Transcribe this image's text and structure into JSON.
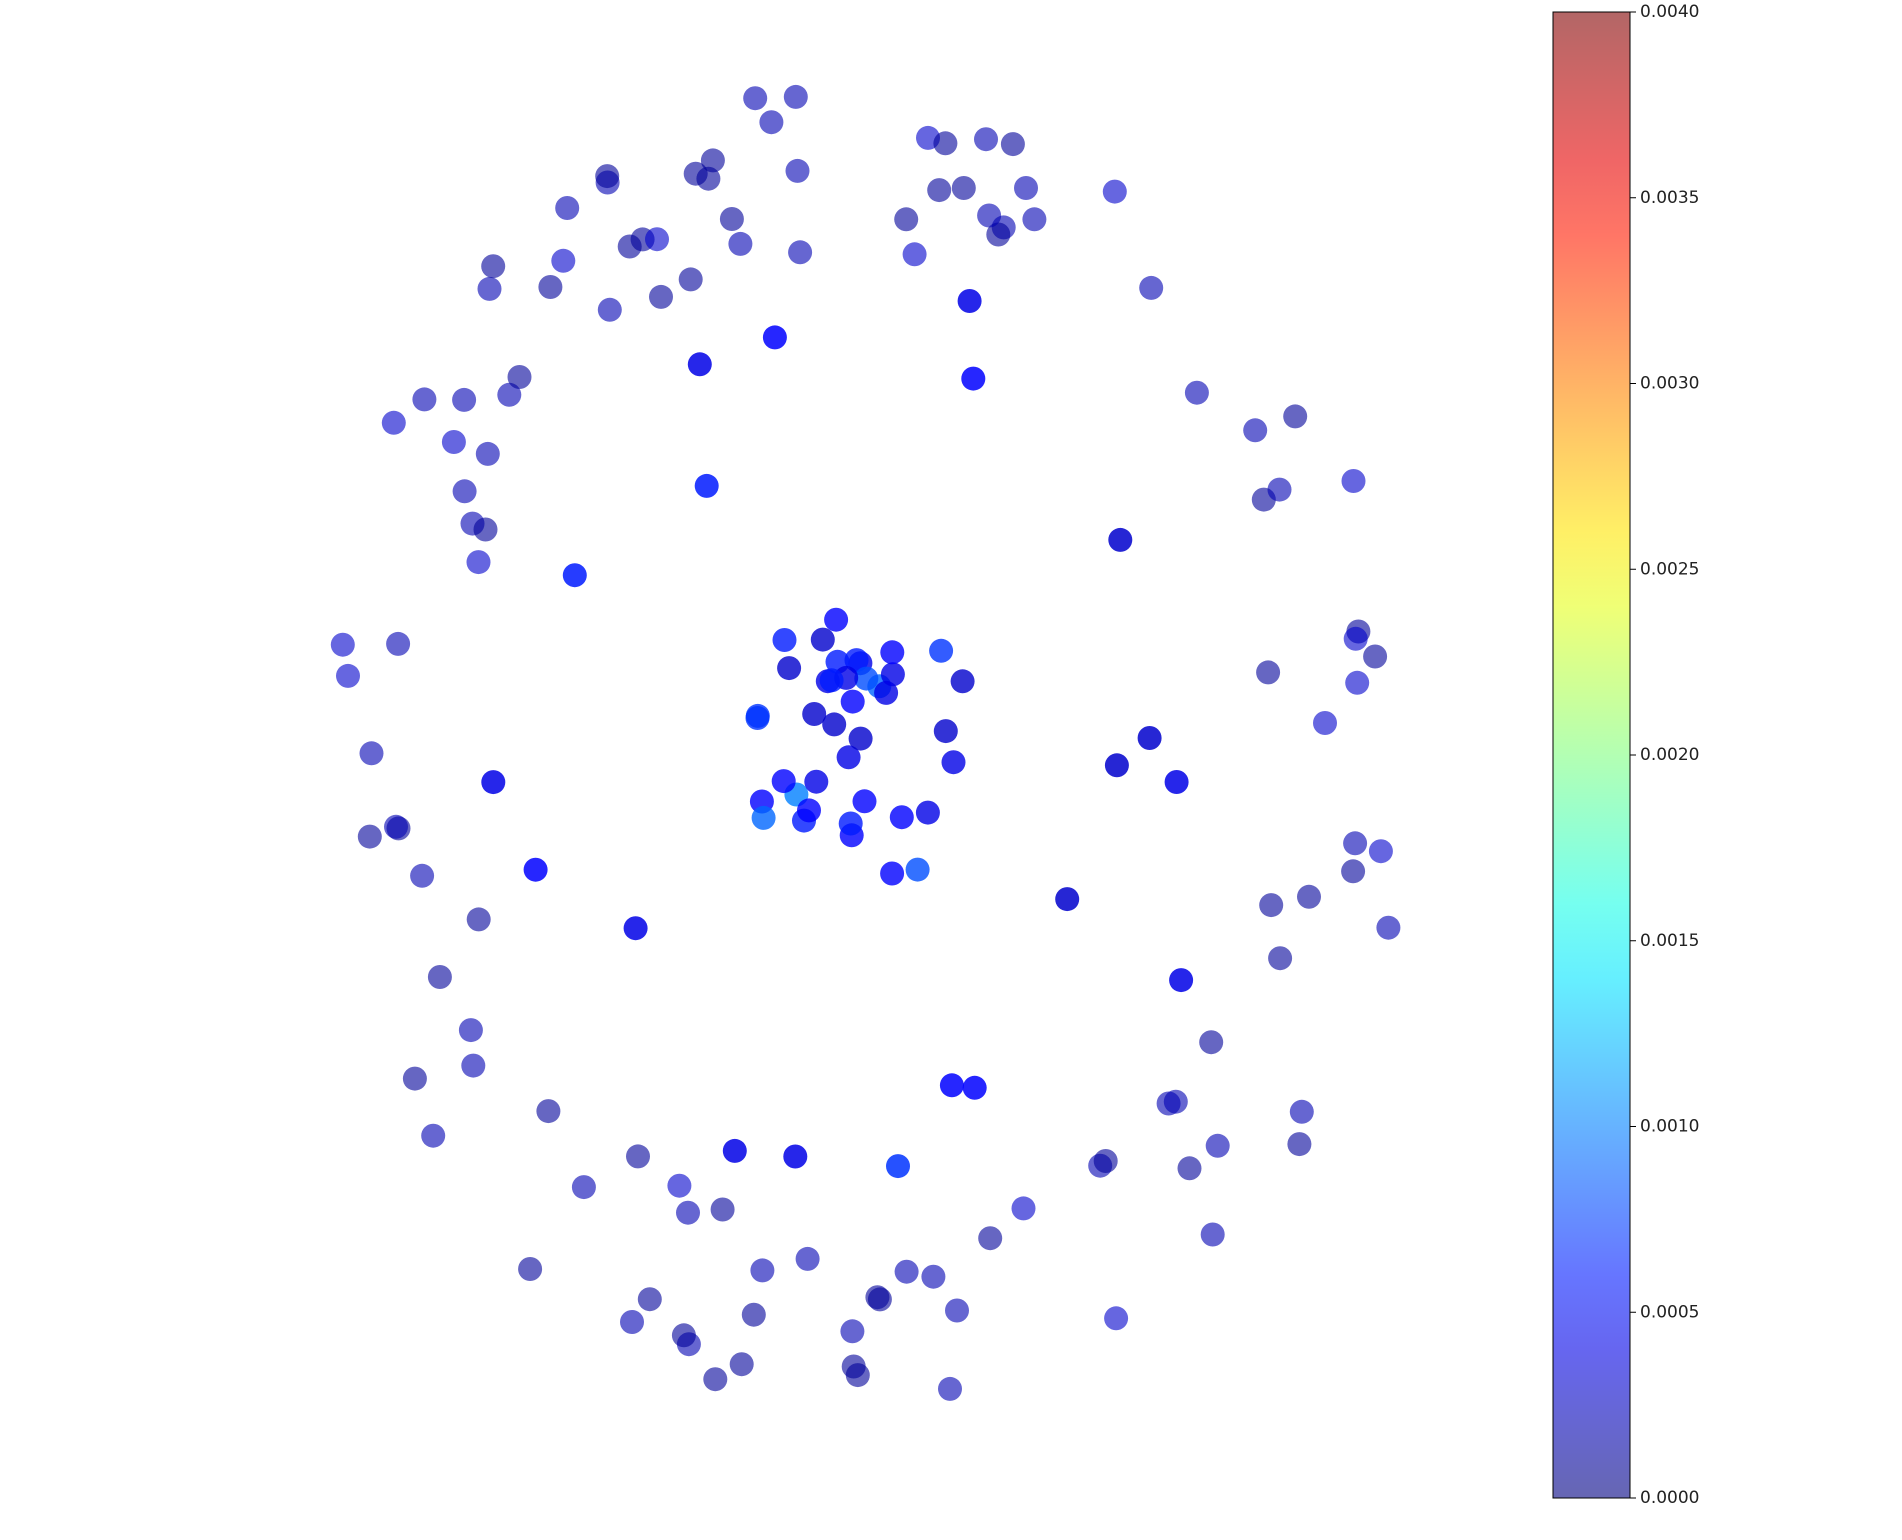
{
  "chart_data": {
    "type": "network",
    "colormap": "jet",
    "clim": [
      0,
      0.004
    ],
    "cticks": [
      {
        "value": 0,
        "label": "0.0000"
      },
      0.0005,
      {
        "value": 0.001,
        "label": "0.0010"
      },
      0.0015,
      {
        "value": 0.002,
        "label": "0.0020"
      },
      0.0025,
      {
        "value": 0.003,
        "label": "0.0030"
      },
      0.0035,
      {
        "value": 0.004,
        "label": "0.0040"
      }
    ],
    "values": [
      0.0004,
      0.0006,
      0.0003,
      0.0008,
      0.0005,
      0.0004,
      0.0009,
      0.0003,
      0.0005,
      0.0007,
      0.0004,
      0.0006,
      0.0005,
      0.0003,
      0.001,
      0.0004,
      0.0005,
      0.0006,
      0.0003,
      0.0008,
      0.0005,
      0.0004,
      0.0007,
      0.0005,
      0.0003,
      0.0006,
      0.0004,
      0.0005,
      0.0009,
      0.0004,
      0.0005,
      0.0003,
      0.0006,
      0.0004,
      0.0005,
      0.0007,
      0.0003,
      0.0004,
      0.0005,
      0.0006,
      0.0004,
      0.0005,
      0.0003,
      0.0004,
      0.0006,
      0.0005,
      0.0004,
      0.0003,
      0.0005,
      0.0004,
      0.0006,
      0.0004,
      0.0003,
      0.0005,
      0.0004,
      0.0007,
      0.0004,
      0.0003,
      0.0005,
      0.0004,
      0.0002,
      0.0001,
      0.0002,
      0.0003,
      0.0001,
      0.0002,
      0.0001,
      0.0002,
      0.0003,
      0.0001,
      0.0002,
      0.0001,
      0.0002,
      0.0001,
      0.0003,
      0.0002,
      0.0001,
      0.0002,
      0.0001,
      0.0002,
      0.0001,
      0.0002,
      0.0003,
      0.0001,
      0.0002,
      0.0001,
      0.0002,
      0.0001,
      0.0002,
      0.0003,
      0.0001,
      0.0002,
      0.0001,
      0.0002,
      0.0001,
      0.0002,
      0.0003,
      0.0001,
      0.0002,
      0.0001,
      0.0002,
      0.0001,
      0.0002,
      0.0003,
      0.0001,
      0.0002,
      0.0001,
      0.0002,
      0.0001,
      0.0002,
      0.0003,
      0.0001,
      0.0002,
      0.0001,
      0.0002,
      0.0001,
      0.0002,
      0.0003,
      0.0001,
      0.0002,
      0.0001,
      0.0002,
      0.0003,
      0.0001,
      0.0002,
      0.0001,
      0.0002,
      0.0001,
      0.0002,
      0.0003,
      0.0001,
      0.0002,
      0.0001,
      0.0002,
      0.0001,
      0.0002,
      0.0003,
      0.0001,
      0.0002,
      0.0001,
      0.0002,
      0.0001,
      0.0002,
      0.0003,
      0.0001,
      0.0002,
      0.0001,
      0.0002,
      0.0001,
      0.0002,
      0.0003,
      0.0001,
      0.0002,
      0.0001,
      0.0002,
      0.0001,
      0.0002,
      0.0003,
      0.0001,
      0.0002,
      0.0001,
      0.0002,
      0.0003,
      0.0001,
      0.0002,
      0.0001,
      0.0002,
      0.0001,
      0.0002,
      0.0003,
      0.0001,
      0.0002,
      0.0001,
      0.0002,
      0.0001,
      0.0002,
      0.0003,
      0.0001,
      0.0002,
      0.0001
    ]
  }
}
